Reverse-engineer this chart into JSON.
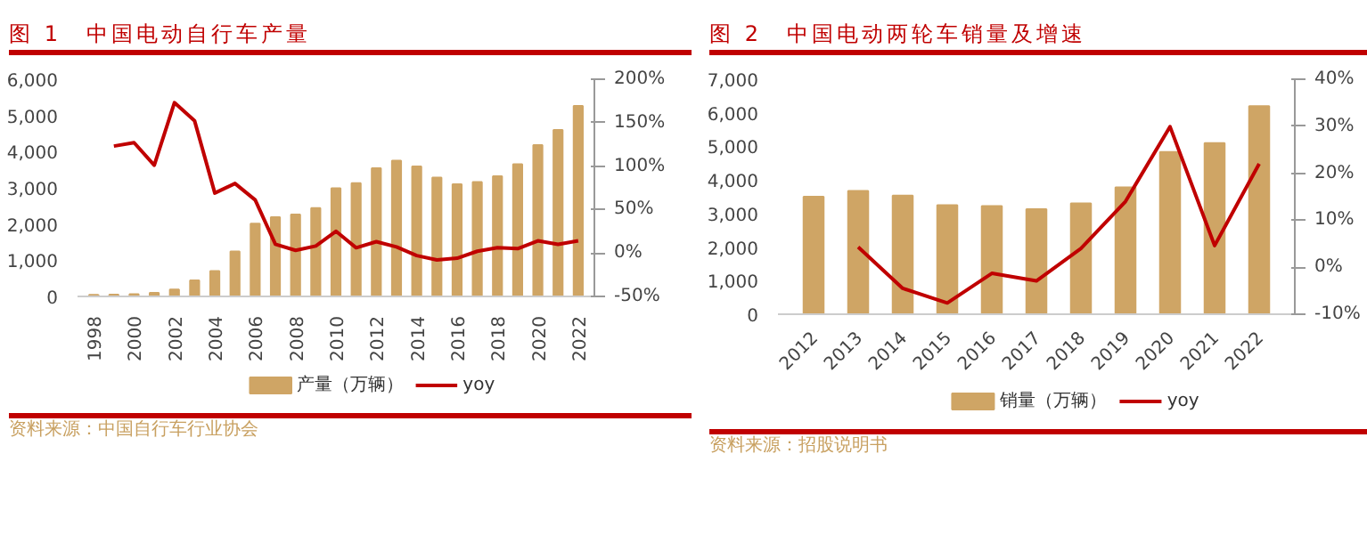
{
  "chart_data": [
    {
      "type": "bar",
      "title": "图 1　中国电动自行车产量",
      "categories": [
        "1998",
        null,
        "2000",
        null,
        "2002",
        null,
        "2004",
        null,
        "2006",
        null,
        "2008",
        null,
        "2010",
        null,
        "2012",
        null,
        "2014",
        null,
        "2016",
        null,
        "2018",
        null,
        "2020",
        null,
        "2022"
      ],
      "series": [
        {
          "name": "产量（万辆）",
          "color": "#cfa565",
          "values": [
            40,
            50,
            60,
            100,
            190,
            440,
            700,
            1240,
            2010,
            2190,
            2260,
            2440,
            2990,
            3130,
            3540,
            3750,
            3590,
            3280,
            3100,
            3160,
            3320,
            3650,
            4180,
            4600,
            5260
          ]
        },
        {
          "name": "yoy",
          "type": "line",
          "axis": "y2",
          "color": "#c00000",
          "values": [
            null,
            123,
            127,
            101,
            173,
            152,
            69,
            80,
            61,
            10,
            3,
            8,
            25,
            6,
            13,
            7,
            -3,
            -8,
            -6,
            2,
            6,
            5,
            14,
            10,
            14
          ]
        }
      ],
      "ylim": [
        0,
        6000
      ],
      "yticks": [
        {
          "value": 0,
          "label": "0"
        },
        {
          "value": 1000,
          "label": "1,000"
        },
        {
          "value": 2000,
          "label": "2,000"
        },
        {
          "value": 3000,
          "label": "3,000"
        },
        {
          "value": 4000,
          "label": "4,000"
        },
        {
          "value": 5000,
          "label": "5,000"
        },
        {
          "value": 6000,
          "label": "6,000"
        }
      ],
      "y2lim": [
        -50,
        200
      ],
      "y2ticks": [
        {
          "value": -50,
          "label": "-50%"
        },
        {
          "value": 0,
          "label": "0%"
        },
        {
          "value": 50,
          "label": "50%"
        },
        {
          "value": 100,
          "label": "100%"
        },
        {
          "value": 150,
          "label": "150%"
        },
        {
          "value": 200,
          "label": "200%"
        }
      ],
      "legend": "bottom",
      "grid": false,
      "annotations": [
        "资料来源：中国自行车行业协会"
      ]
    },
    {
      "type": "bar",
      "title": "图 2　中国电动两轮车销量及增速",
      "categories": [
        "2012",
        "2013",
        "2014",
        "2015",
        "2016",
        "2017",
        "2018",
        "2019",
        "2020",
        "2021",
        "2022"
      ],
      "series": [
        {
          "name": "销量（万辆）",
          "color": "#cfa565",
          "values": [
            3500,
            3670,
            3530,
            3250,
            3220,
            3130,
            3300,
            3780,
            4830,
            5100,
            6200
          ]
        },
        {
          "name": "yoy",
          "type": "line",
          "axis": "y2",
          "color": "#c00000",
          "values": [
            null,
            4.3,
            -4.5,
            -7.6,
            -1.3,
            -2.9,
            4,
            14,
            29.9,
            4.6,
            22
          ]
        }
      ],
      "ylim": [
        0,
        7000
      ],
      "yticks": [
        {
          "value": 0,
          "label": "0"
        },
        {
          "value": 1000,
          "label": "1,000"
        },
        {
          "value": 2000,
          "label": "2,000"
        },
        {
          "value": 3000,
          "label": "3,000"
        },
        {
          "value": 4000,
          "label": "4,000"
        },
        {
          "value": 5000,
          "label": "5,000"
        },
        {
          "value": 6000,
          "label": "6,000"
        },
        {
          "value": 7000,
          "label": "7,000"
        }
      ],
      "y2lim": [
        -10,
        40
      ],
      "y2ticks": [
        {
          "value": -10,
          "label": "-10%"
        },
        {
          "value": 0,
          "label": "0%"
        },
        {
          "value": 10,
          "label": "10%"
        },
        {
          "value": 20,
          "label": "20%"
        },
        {
          "value": 30,
          "label": "30%"
        },
        {
          "value": 40,
          "label": "40%"
        }
      ],
      "legend": "bottom",
      "grid": false,
      "annotations": [
        "资料来源：招股说明书"
      ]
    }
  ]
}
